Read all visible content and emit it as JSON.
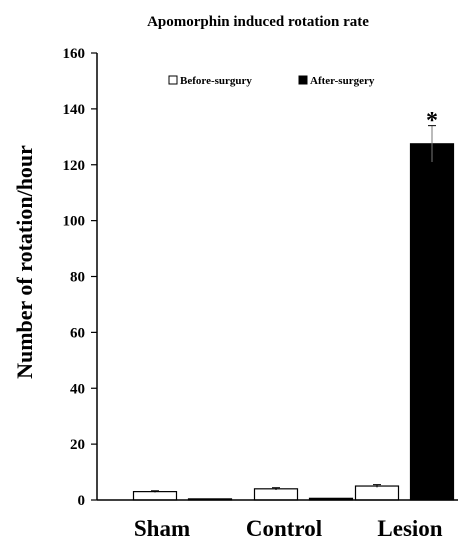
{
  "chart_data": {
    "type": "bar",
    "title": "Apomorphin induced rotation rate",
    "xlabel": "",
    "ylabel": "Number of rotation/hour",
    "ylim": [
      0,
      160
    ],
    "yticks": [
      0,
      20,
      40,
      60,
      80,
      100,
      120,
      140,
      160
    ],
    "categories": [
      "Sham",
      "Control",
      "Lesion"
    ],
    "series": [
      {
        "name": "Before-surgury",
        "values": [
          3,
          4,
          5
        ],
        "errors": [
          0.3,
          0.4,
          0.5
        ],
        "color": "#ffffff"
      },
      {
        "name": "After-surgery",
        "values": [
          0.4,
          0.6,
          127.5
        ],
        "errors": [
          0,
          0,
          6.5
        ],
        "color": "#000000"
      }
    ],
    "annotations": [
      {
        "text": "*",
        "category": "Lesion",
        "series": "After-surgery"
      }
    ],
    "legend_position": "top",
    "grid": false
  }
}
